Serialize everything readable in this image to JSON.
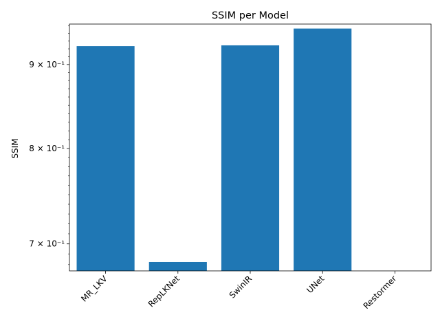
{
  "chart_data": {
    "type": "bar",
    "title": "SSIM per Model",
    "xlabel": "",
    "ylabel": "SSIM",
    "yscale": "log",
    "ylim": [
      0.674,
      0.9525
    ],
    "categories": [
      "MR_LKV",
      "RepLKNet",
      "SwinIR",
      "UNet",
      "Restormer"
    ],
    "values": [
      0.9235,
      0.6825,
      0.9245,
      0.9465,
      0.674
    ],
    "y_ticks": [
      {
        "value": 0.7,
        "label": "7 × 10⁻¹"
      },
      {
        "value": 0.8,
        "label": "8 × 10⁻¹"
      },
      {
        "value": 0.9,
        "label": "9 × 10⁻¹"
      }
    ],
    "bar_color": "#1f77b4",
    "grid": false,
    "legend": "none"
  }
}
